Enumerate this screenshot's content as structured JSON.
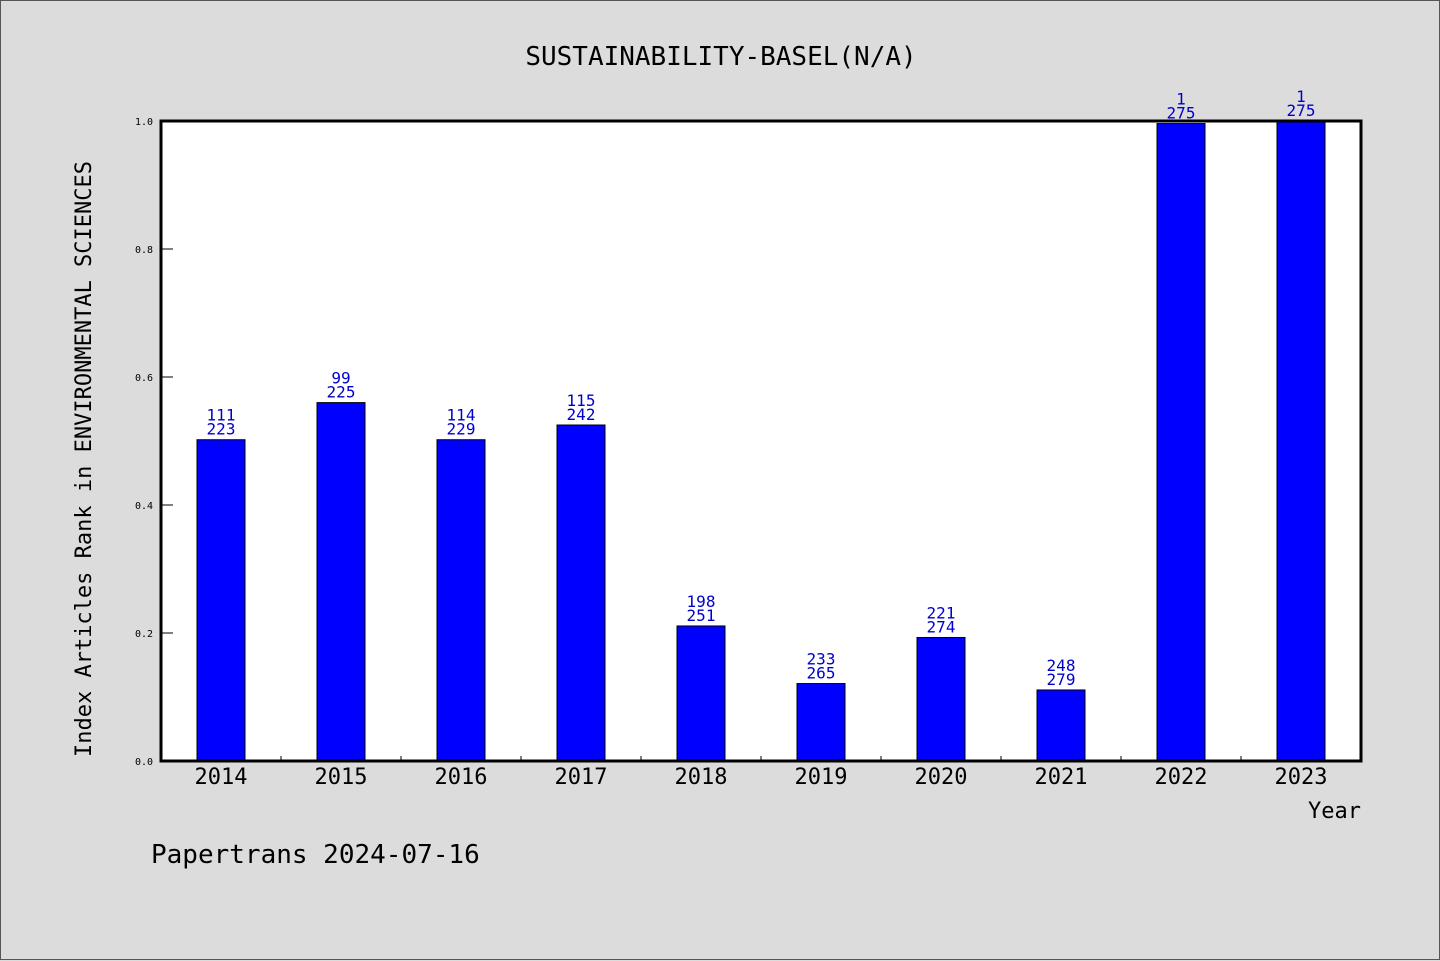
{
  "chart_data": {
    "type": "bar",
    "title": "SUSTAINABILITY-BASEL(N/A)",
    "xlabel": "Year",
    "ylabel": "Index Articles Rank in ENVIRONMENTAL SCIENCES",
    "categories": [
      "2014",
      "2015",
      "2016",
      "2017",
      "2018",
      "2019",
      "2020",
      "2021",
      "2022",
      "2023"
    ],
    "values": [
      0.502,
      0.56,
      0.502,
      0.525,
      0.211,
      0.121,
      0.193,
      0.111,
      0.996,
      1.0
    ],
    "rank": [
      "111",
      "99",
      "114",
      "115",
      "198",
      "233",
      "221",
      "248",
      "1",
      "1"
    ],
    "total": [
      "223",
      "225",
      "229",
      "242",
      "251",
      "265",
      "274",
      "279",
      "275",
      "275"
    ],
    "ylim": [
      0,
      1.0
    ],
    "yticks": [
      "0.0",
      "0.2",
      "0.4",
      "0.6",
      "0.8",
      "1.0"
    ],
    "grid": false,
    "colors": {
      "bar": "#0000ff",
      "label": "#0000cc",
      "background": "#dcdcdc",
      "plot_bg": "#ffffff"
    }
  },
  "footer": "Papertrans 2024-07-16"
}
